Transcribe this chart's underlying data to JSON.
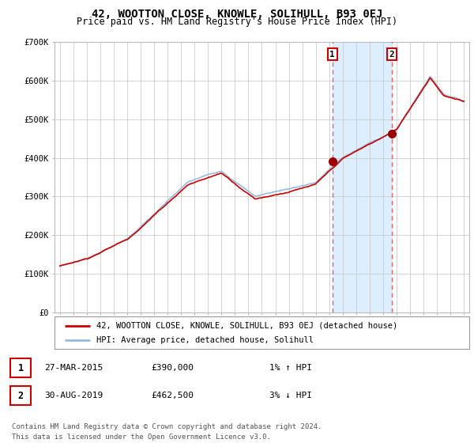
{
  "title": "42, WOOTTON CLOSE, KNOWLE, SOLIHULL, B93 0EJ",
  "subtitle": "Price paid vs. HM Land Registry's House Price Index (HPI)",
  "ylim": [
    0,
    700000
  ],
  "yticks": [
    0,
    100000,
    200000,
    300000,
    400000,
    500000,
    600000,
    700000
  ],
  "ytick_labels": [
    "£0",
    "£100K",
    "£200K",
    "£300K",
    "£400K",
    "£500K",
    "£600K",
    "£700K"
  ],
  "background_color": "#ffffff",
  "grid_color": "#cccccc",
  "hpi_color": "#99bbdd",
  "property_color": "#cc0000",
  "sale1_date": 2015.24,
  "sale1_price": 390000,
  "sale2_date": 2019.66,
  "sale2_price": 462500,
  "vline_color": "#dd6666",
  "span_color": "#ddeeff",
  "legend_line1": "42, WOOTTON CLOSE, KNOWLE, SOLIHULL, B93 0EJ (detached house)",
  "legend_line2": "HPI: Average price, detached house, Solihull",
  "table_row1": [
    "1",
    "27-MAR-2015",
    "£390,000",
    "1% ↑ HPI"
  ],
  "table_row2": [
    "2",
    "30-AUG-2019",
    "£462,500",
    "3% ↓ HPI"
  ],
  "footer1": "Contains HM Land Registry data © Crown copyright and database right 2024.",
  "footer2": "This data is licensed under the Open Government Licence v3.0.",
  "title_fontsize": 10,
  "subtitle_fontsize": 8.5,
  "tick_fontsize": 7.5,
  "legend_fontsize": 7.5,
  "table_fontsize": 8,
  "footer_fontsize": 6.5
}
